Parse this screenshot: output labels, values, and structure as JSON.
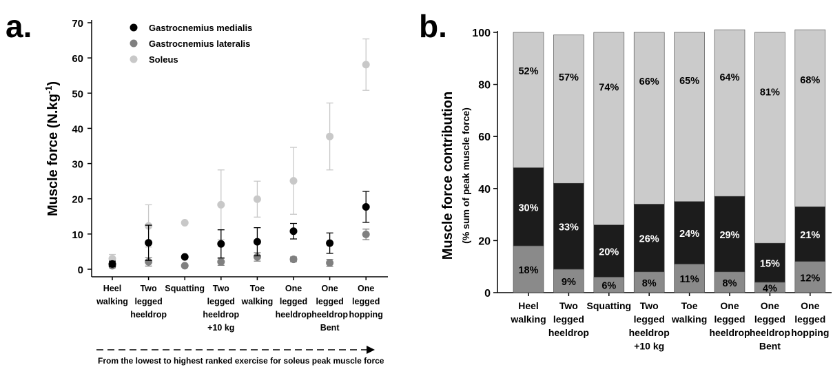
{
  "chart_data": [
    {
      "panel": "a.",
      "type": "scatter",
      "ylabel": "Muscle force (N.kg",
      "ylabel_sup": "-1",
      "ylabel_end": ")",
      "ylim": [
        0,
        70
      ],
      "yticks": [
        "0",
        "10",
        "20",
        "30",
        "40",
        "50",
        "60",
        "70"
      ],
      "categories": [
        [
          "Heel",
          "walking"
        ],
        [
          "Two",
          "legged",
          "heeldrop"
        ],
        [
          "Squatting"
        ],
        [
          "Two",
          "legged",
          "heeldrop",
          "+10 kg"
        ],
        [
          "Toe",
          "walking"
        ],
        [
          "One",
          "legged",
          "heeldrop"
        ],
        [
          "One",
          "legged",
          "heeldrop",
          "Bent"
        ],
        [
          "One",
          "legged",
          "hopping"
        ]
      ],
      "legend_position": "top-left",
      "series": [
        {
          "name": "Gastrocnemius medialis",
          "color": "#000000",
          "values": [
            1.5,
            7.5,
            3.5,
            7.2,
            7.8,
            10.8,
            7.4,
            17.7
          ],
          "err": [
            0.8,
            5.0,
            0,
            4.0,
            4.0,
            2.2,
            2.9,
            4.4
          ]
        },
        {
          "name": "Gastrocnemius lateralis",
          "color": "#808080",
          "values": [
            1.0,
            2.1,
            1.0,
            2.1,
            3.5,
            2.8,
            1.8,
            9.9
          ],
          "err": [
            0.6,
            1.2,
            0,
            1.0,
            1.2,
            0.7,
            1.0,
            1.5
          ]
        },
        {
          "name": "Soleus",
          "color": "#c8c8c8",
          "values": [
            3.0,
            12.3,
            13.2,
            18.3,
            19.9,
            25.1,
            37.7,
            58.1
          ],
          "err": [
            1.2,
            6.0,
            0,
            9.9,
            5.1,
            9.5,
            9.5,
            7.3
          ]
        }
      ],
      "arrow_caption": "From the lowest to highest ranked exercise for soleus peak muscle force"
    },
    {
      "panel": "b.",
      "type": "bar",
      "stacked": true,
      "ylabel": "Muscle force contribution",
      "ylabel_sub": "(% sum of peak muscle force)",
      "ylim": [
        0,
        100
      ],
      "yticks": [
        "0",
        "20",
        "40",
        "60",
        "80",
        "100"
      ],
      "categories": [
        [
          "Heel",
          "walking"
        ],
        [
          "Two",
          "legged",
          "heeldrop"
        ],
        [
          "Squatting"
        ],
        [
          "Two",
          "legged",
          "heeldrop",
          "+10 kg"
        ],
        [
          "Toe",
          "walking"
        ],
        [
          "One",
          "legged",
          "heeldrop"
        ],
        [
          "One",
          "legged",
          "heeldrop",
          "Bent"
        ],
        [
          "One",
          "legged",
          "hopping"
        ]
      ],
      "series": [
        {
          "color": "#8a8a8a",
          "text_color": "#000000",
          "values": [
            18,
            9,
            6,
            8,
            11,
            8,
            4,
            12
          ],
          "labels": [
            "18%",
            "9%",
            "6%",
            "8%",
            "11%",
            "8%",
            "4%",
            "12%"
          ]
        },
        {
          "color": "#1c1c1c",
          "text_color": "#ffffff",
          "values": [
            30,
            33,
            20,
            26,
            24,
            29,
            15,
            21
          ],
          "labels": [
            "30%",
            "33%",
            "20%",
            "26%",
            "24%",
            "29%",
            "15%",
            "21%"
          ]
        },
        {
          "color": "#cbcbcb",
          "text_color": "#000000",
          "values": [
            52,
            57,
            74,
            66,
            65,
            64,
            81,
            68
          ],
          "labels": [
            "52%",
            "57%",
            "74%",
            "66%",
            "65%",
            "64%",
            "81%",
            "68%"
          ]
        }
      ]
    }
  ]
}
